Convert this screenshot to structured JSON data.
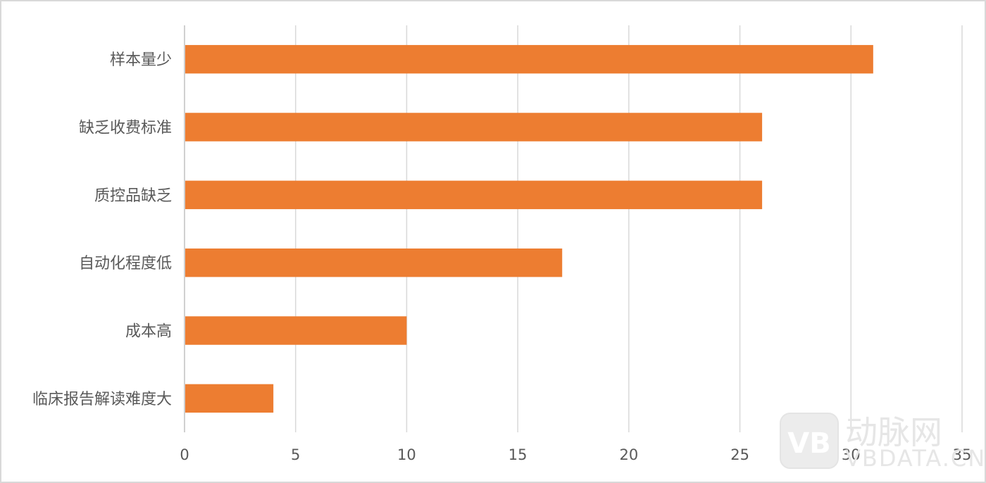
{
  "chart_data": {
    "type": "bar",
    "orientation": "horizontal",
    "categories": [
      "样本量少",
      "缺乏收费标准",
      "质控品缺乏",
      "自动化程度低",
      "成本高",
      "临床报告解读难度大"
    ],
    "values": [
      31,
      26,
      26,
      17,
      10,
      4
    ],
    "xticks": [
      0,
      5,
      10,
      15,
      20,
      25,
      30,
      35
    ],
    "xlim": [
      0,
      35
    ],
    "grid": true,
    "legend": "none",
    "bar_color": "#ED7D31"
  },
  "watermark": {
    "logo_text": "VB",
    "brand": "动脉网",
    "url": "VBDATA.CN"
  }
}
